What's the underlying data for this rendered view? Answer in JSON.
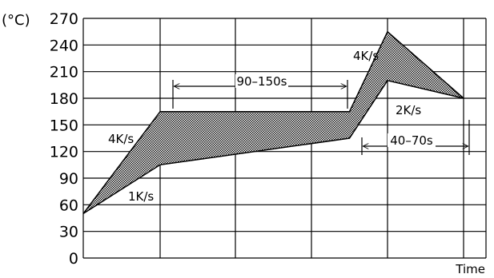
{
  "chart_data": {
    "type": "area",
    "title": "",
    "ylabel": "(°C)",
    "xlabel": "Time",
    "ylim": [
      0,
      270
    ],
    "yticks": [
      0,
      30,
      60,
      90,
      120,
      150,
      180,
      210,
      240,
      270
    ],
    "grid": true,
    "band": {
      "upper": [
        [
          0,
          50
        ],
        [
          1,
          165
        ],
        [
          3.5,
          165
        ],
        [
          4,
          255
        ],
        [
          5,
          180
        ]
      ],
      "lower": [
        [
          0,
          50
        ],
        [
          1,
          105
        ],
        [
          3.5,
          135
        ],
        [
          4,
          200
        ],
        [
          5,
          180
        ]
      ]
    },
    "annotations": [
      {
        "text": "4K/s"
      },
      {
        "text": "1K/s"
      },
      {
        "text": "90–150s"
      },
      {
        "text": "4K/s"
      },
      {
        "text": "2K/s"
      },
      {
        "text": "40–70s"
      }
    ]
  }
}
